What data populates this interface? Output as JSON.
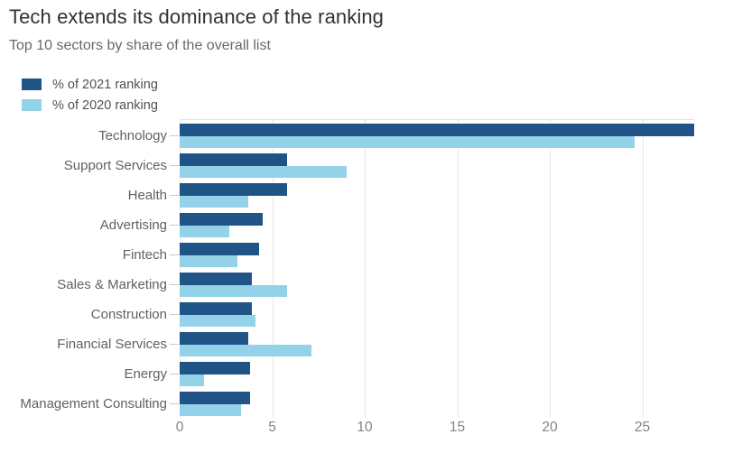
{
  "header": {
    "title": "Tech extends its dominance of the ranking",
    "subtitle": "Top 10 sectors by share of the overall list"
  },
  "colors": {
    "series_2021": "#205487",
    "series_2020": "#93d2e9",
    "grid": "#e9e7e5",
    "title_text": "#33302e",
    "muted_text": "#66605c",
    "tick_text": "#8a837d"
  },
  "chart_data": {
    "type": "bar",
    "orientation": "horizontal",
    "title": "Tech extends its dominance of the ranking",
    "subtitle": "Top 10 sectors by share of the overall list",
    "categories": [
      "Technology",
      "Support Services",
      "Health",
      "Advertising",
      "Fintech",
      "Sales & Marketing",
      "Construction",
      "Financial Services",
      "Energy",
      "Management Consulting"
    ],
    "series": [
      {
        "name": "% of 2021 ranking",
        "color_key": "series_2021",
        "values": [
          27.8,
          5.8,
          5.8,
          4.5,
          4.3,
          3.9,
          3.9,
          3.7,
          3.8,
          3.8
        ]
      },
      {
        "name": "% of 2020 ranking",
        "color_key": "series_2020",
        "values": [
          24.6,
          9.0,
          3.7,
          2.7,
          3.1,
          5.8,
          4.1,
          7.1,
          1.3,
          3.3
        ]
      }
    ],
    "x_ticks": [
      "0",
      "5",
      "10",
      "15",
      "20",
      "25"
    ],
    "x_tick_values": [
      0,
      5,
      10,
      15,
      20,
      25
    ],
    "xlim": [
      0,
      27.8
    ],
    "grid": true,
    "legend_position": "top-left"
  }
}
